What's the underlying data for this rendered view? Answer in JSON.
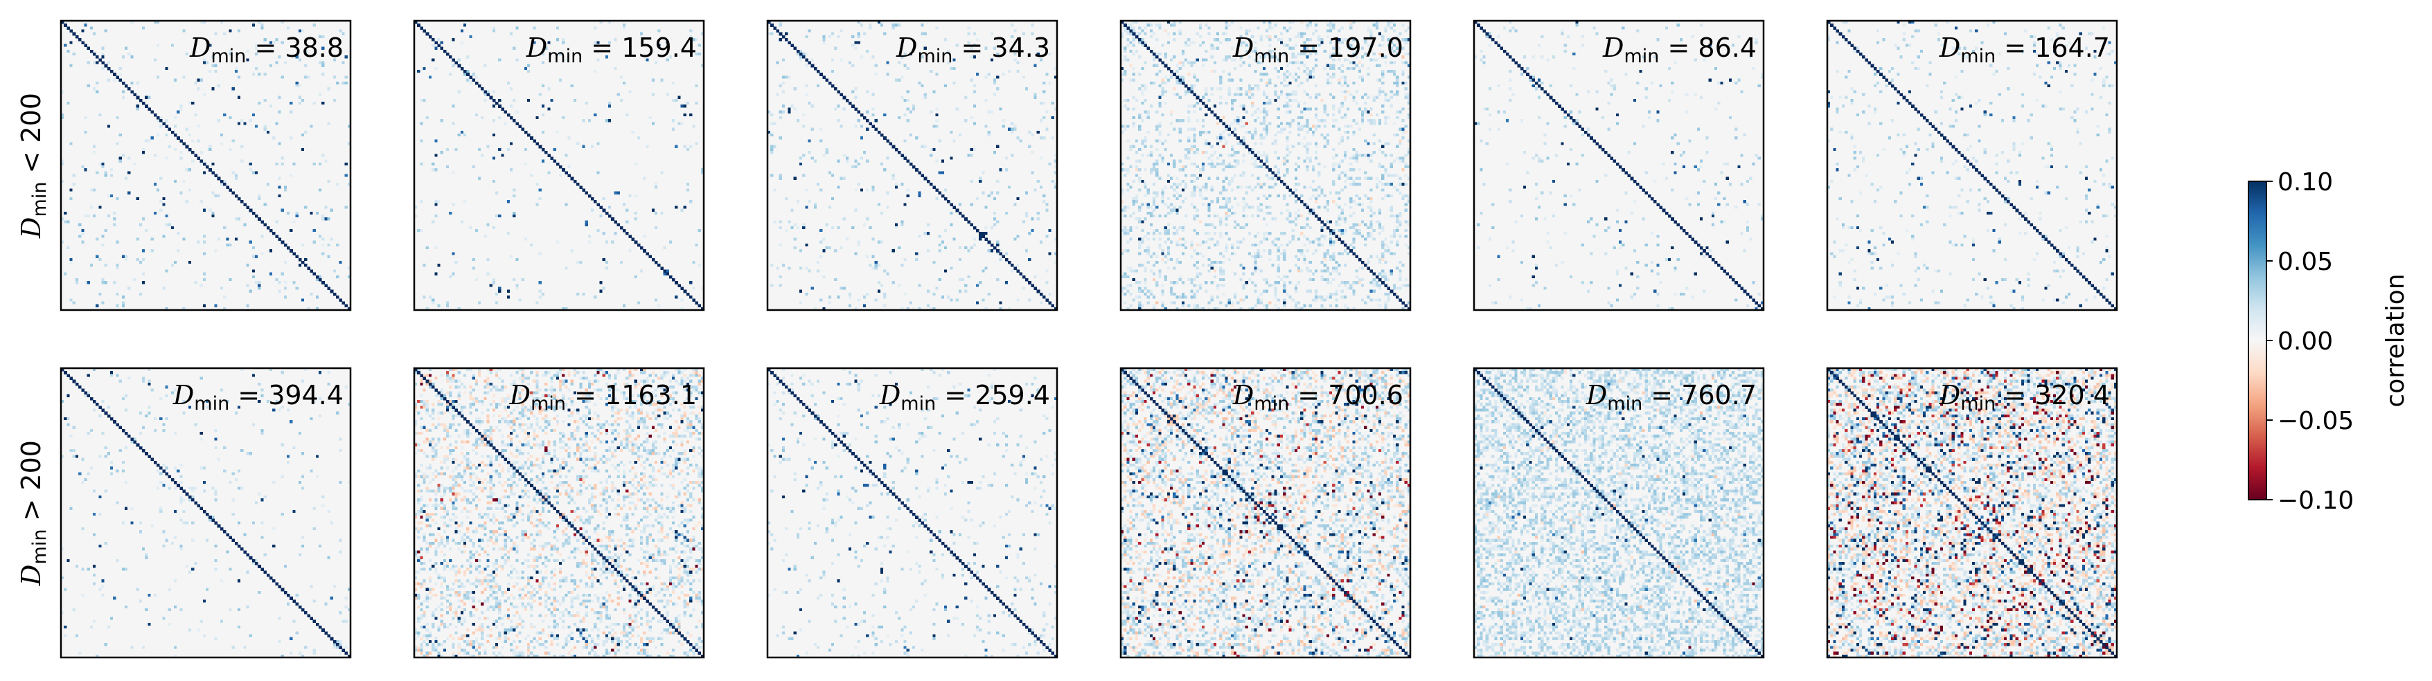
{
  "chart_data": {
    "type": "heatmap",
    "description_rows": [
      "D_min < 200",
      "D_min > 200"
    ],
    "row_labels": [
      {
        "symbol": "D",
        "subscript": "min",
        "relation": "< 200"
      },
      {
        "symbol": "D",
        "subscript": "min",
        "relation": "> 200"
      }
    ],
    "panel_label_prefix": {
      "symbol": "D",
      "subscript": "min",
      "equals": "="
    },
    "matrix_size": 100,
    "panels": [
      {
        "row": 0,
        "col": 0,
        "dmin": "38.8",
        "density": 0.01,
        "light_density": 0.04,
        "neg_fraction": 0.0,
        "seed": 11
      },
      {
        "row": 0,
        "col": 1,
        "dmin": "159.4",
        "density": 0.006,
        "light_density": 0.03,
        "neg_fraction": 0.0,
        "seed": 23
      },
      {
        "row": 0,
        "col": 2,
        "dmin": "34.3",
        "density": 0.01,
        "light_density": 0.05,
        "neg_fraction": 0.0,
        "seed": 37
      },
      {
        "row": 0,
        "col": 3,
        "dmin": "197.0",
        "density": 0.006,
        "light_density": 0.22,
        "neg_fraction": 0.02,
        "seed": 41
      },
      {
        "row": 0,
        "col": 4,
        "dmin": "86.4",
        "density": 0.008,
        "light_density": 0.03,
        "neg_fraction": 0.0,
        "seed": 53
      },
      {
        "row": 0,
        "col": 5,
        "dmin": "164.7",
        "density": 0.008,
        "light_density": 0.04,
        "neg_fraction": 0.0,
        "seed": 67
      },
      {
        "row": 1,
        "col": 0,
        "dmin": "394.4",
        "density": 0.006,
        "light_density": 0.03,
        "neg_fraction": 0.0,
        "seed": 71
      },
      {
        "row": 1,
        "col": 1,
        "dmin": "1163.1",
        "density": 0.02,
        "light_density": 0.3,
        "neg_fraction": 0.25,
        "seed": 83
      },
      {
        "row": 1,
        "col": 2,
        "dmin": "259.4",
        "density": 0.008,
        "light_density": 0.05,
        "neg_fraction": 0.0,
        "seed": 97
      },
      {
        "row": 1,
        "col": 3,
        "dmin": "700.6",
        "density": 0.05,
        "light_density": 0.35,
        "neg_fraction": 0.3,
        "seed": 101
      },
      {
        "row": 1,
        "col": 4,
        "dmin": "760.7",
        "density": 0.008,
        "light_density": 0.45,
        "neg_fraction": 0.02,
        "seed": 113
      },
      {
        "row": 1,
        "col": 5,
        "dmin": "320.4",
        "density": 0.12,
        "light_density": 0.4,
        "neg_fraction": 0.4,
        "seed": 127
      }
    ],
    "colorbar": {
      "label": "correlation",
      "colormap": "RdBu",
      "vmin": -0.1,
      "vmax": 0.1,
      "ticks": [
        "0.10",
        "0.05",
        "0.00",
        "−0.05",
        "−0.10"
      ],
      "tick_values": [
        0.1,
        0.05,
        0.0,
        -0.05,
        -0.1
      ]
    },
    "colors": {
      "diagonal": "#0a2a5e",
      "background": "#f5f5f5"
    }
  }
}
